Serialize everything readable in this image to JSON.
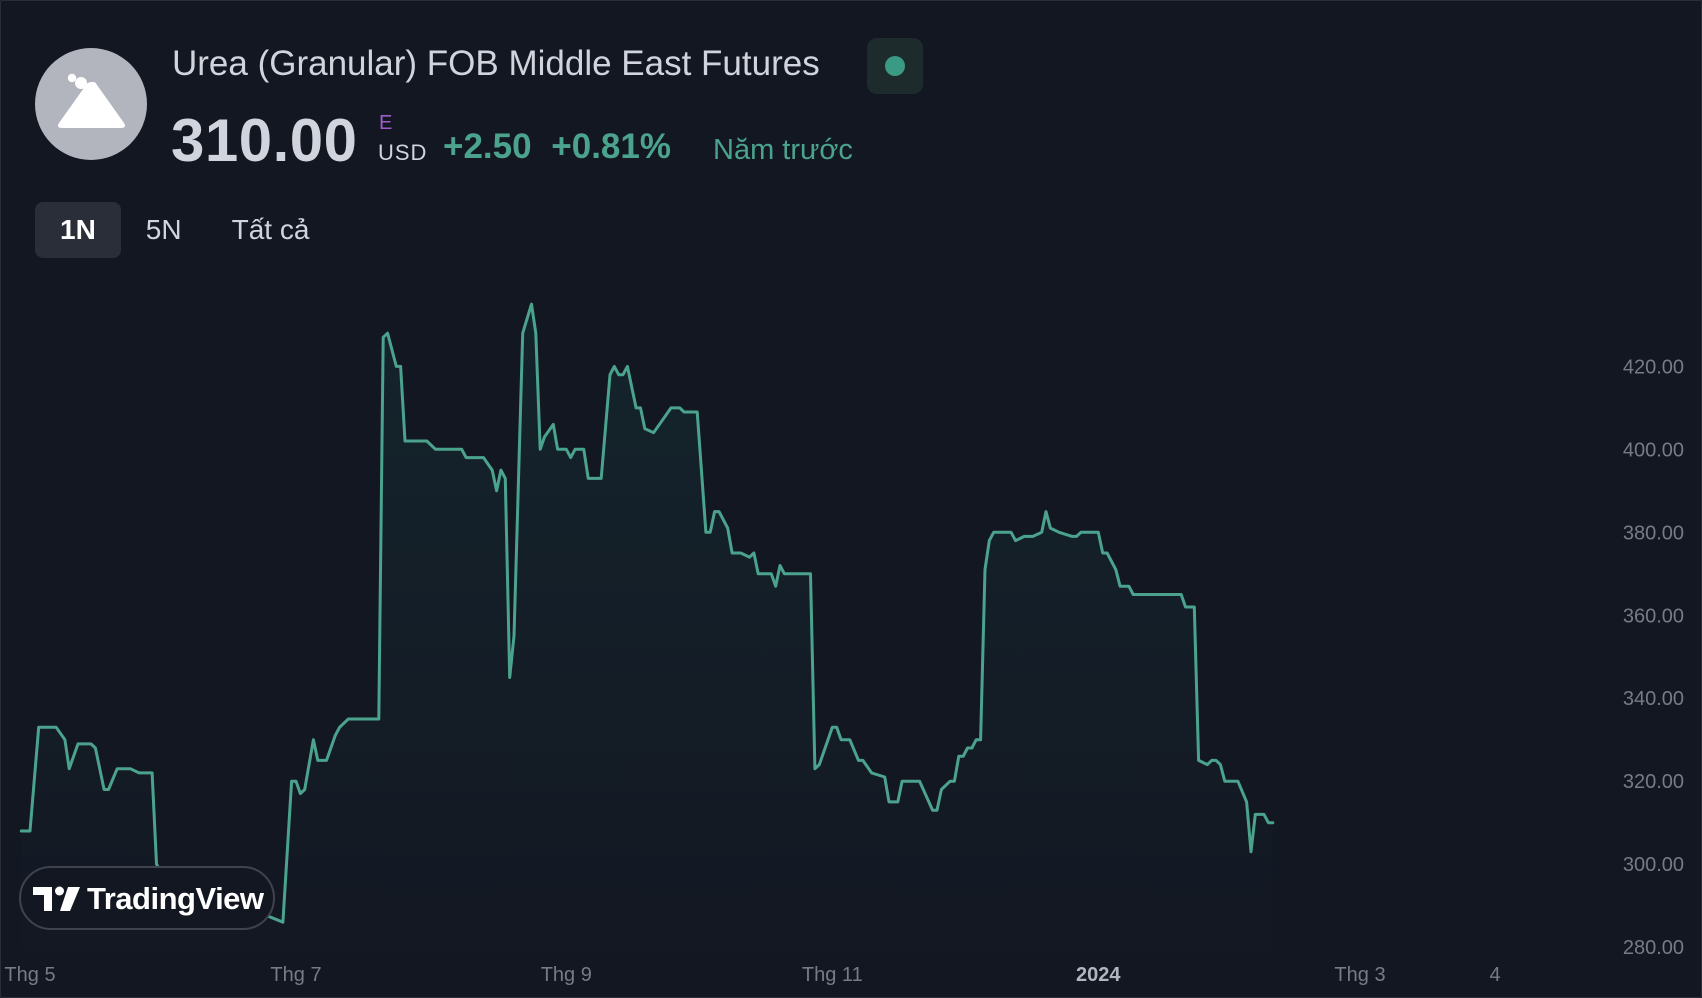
{
  "header": {
    "logo_icon": "mountain-icon",
    "title": "Urea (Granular) FOB Middle East Futures",
    "status_icon": "market-open-dot-icon",
    "status_color": "#3a9a84",
    "price": "310.00",
    "price_flag": "E",
    "currency": "USD",
    "change": "+2.50",
    "change_pct": "+0.81%",
    "period_label": "Năm trước",
    "accent_color": "#4ba38d"
  },
  "tabs": [
    {
      "label": "1N",
      "active": true
    },
    {
      "label": "5N",
      "active": false
    },
    {
      "label": "Tất cả",
      "active": false
    }
  ],
  "branding": {
    "label": "TradingView",
    "icon": "tradingview-logo-icon"
  },
  "chart_data": {
    "type": "area",
    "line_color": "#4ba38d",
    "ylim": [
      274,
      436
    ],
    "y_ticks": [
      "420.00",
      "400.00",
      "380.00",
      "360.00",
      "340.00",
      "320.00",
      "300.00",
      "280.00"
    ],
    "x_ticks": [
      {
        "label": "Thg 5",
        "at": "2023-05-01",
        "bold": false
      },
      {
        "label": "Thg 7",
        "at": "2023-07-01",
        "bold": false
      },
      {
        "label": "Thg 9",
        "at": "2023-09-01",
        "bold": false
      },
      {
        "label": "Thg 11",
        "at": "2023-11-01",
        "bold": false
      },
      {
        "label": "2024",
        "at": "2024-01-01",
        "bold": true
      },
      {
        "label": "Thg 3",
        "at": "2024-03-01",
        "bold": false
      },
      {
        "label": "4",
        "at": "2024-04-01",
        "bold": false
      }
    ],
    "x_range": [
      "2023-05-01",
      "2024-04-20"
    ],
    "series": [
      {
        "values": [
          [
            "2023-04-29",
            308
          ],
          [
            "2023-05-01",
            308
          ],
          [
            "2023-05-03",
            333
          ],
          [
            "2023-05-07",
            333
          ],
          [
            "2023-05-09",
            330
          ],
          [
            "2023-05-10",
            323
          ],
          [
            "2023-05-12",
            329
          ],
          [
            "2023-05-15",
            329
          ],
          [
            "2023-05-16",
            328
          ],
          [
            "2023-05-18",
            318
          ],
          [
            "2023-05-19",
            318
          ],
          [
            "2023-05-21",
            323
          ],
          [
            "2023-05-24",
            323
          ],
          [
            "2023-05-26",
            322
          ],
          [
            "2023-05-29",
            322
          ],
          [
            "2023-05-30",
            300
          ],
          [
            "2023-05-31",
            298
          ],
          [
            "2023-06-28",
            286
          ],
          [
            "2023-06-30",
            320
          ],
          [
            "2023-07-01",
            320
          ],
          [
            "2023-07-02",
            317
          ],
          [
            "2023-07-03",
            318
          ],
          [
            "2023-07-05",
            330
          ],
          [
            "2023-07-06",
            325
          ],
          [
            "2023-07-08",
            325
          ],
          [
            "2023-07-10",
            331
          ],
          [
            "2023-07-11",
            333
          ],
          [
            "2023-07-13",
            335
          ],
          [
            "2023-07-20",
            335
          ],
          [
            "2023-07-21",
            427
          ],
          [
            "2023-07-22",
            428
          ],
          [
            "2023-07-24",
            420
          ],
          [
            "2023-07-25",
            420
          ],
          [
            "2023-07-26",
            402
          ],
          [
            "2023-07-31",
            402
          ],
          [
            "2023-08-02",
            400
          ],
          [
            "2023-08-08",
            400
          ],
          [
            "2023-08-09",
            398
          ],
          [
            "2023-08-13",
            398
          ],
          [
            "2023-08-15",
            395
          ],
          [
            "2023-08-16",
            390
          ],
          [
            "2023-08-17",
            395
          ],
          [
            "2023-08-18",
            393
          ],
          [
            "2023-08-19",
            345
          ],
          [
            "2023-08-20",
            355
          ],
          [
            "2023-08-22",
            428
          ],
          [
            "2023-08-24",
            435
          ],
          [
            "2023-08-25",
            428
          ],
          [
            "2023-08-26",
            400
          ],
          [
            "2023-08-27",
            403
          ],
          [
            "2023-08-29",
            406
          ],
          [
            "2023-08-30",
            400
          ],
          [
            "2023-09-01",
            400
          ],
          [
            "2023-09-02",
            398
          ],
          [
            "2023-09-03",
            400
          ],
          [
            "2023-09-05",
            400
          ],
          [
            "2023-09-06",
            393
          ],
          [
            "2023-09-09",
            393
          ],
          [
            "2023-09-11",
            418
          ],
          [
            "2023-09-12",
            420
          ],
          [
            "2023-09-13",
            418
          ],
          [
            "2023-09-14",
            418
          ],
          [
            "2023-09-15",
            420
          ],
          [
            "2023-09-17",
            410
          ],
          [
            "2023-09-18",
            410
          ],
          [
            "2023-09-19",
            405
          ],
          [
            "2023-09-21",
            404
          ],
          [
            "2023-09-23",
            407
          ],
          [
            "2023-09-25",
            410
          ],
          [
            "2023-09-27",
            410
          ],
          [
            "2023-09-28",
            409
          ],
          [
            "2023-10-01",
            409
          ],
          [
            "2023-10-03",
            380
          ],
          [
            "2023-10-04",
            380
          ],
          [
            "2023-10-05",
            385
          ],
          [
            "2023-10-06",
            385
          ],
          [
            "2023-10-08",
            381
          ],
          [
            "2023-10-09",
            375
          ],
          [
            "2023-10-11",
            375
          ],
          [
            "2023-10-13",
            374
          ],
          [
            "2023-10-14",
            375
          ],
          [
            "2023-10-15",
            370
          ],
          [
            "2023-10-18",
            370
          ],
          [
            "2023-10-19",
            367
          ],
          [
            "2023-10-20",
            372
          ],
          [
            "2023-10-21",
            370
          ],
          [
            "2023-10-27",
            370
          ],
          [
            "2023-10-28",
            323
          ],
          [
            "2023-10-29",
            324
          ],
          [
            "2023-10-31",
            330
          ],
          [
            "2023-11-01",
            333
          ],
          [
            "2023-11-02",
            333
          ],
          [
            "2023-11-03",
            330
          ],
          [
            "2023-11-05",
            330
          ],
          [
            "2023-11-07",
            325
          ],
          [
            "2023-11-08",
            325
          ],
          [
            "2023-11-10",
            322
          ],
          [
            "2023-11-13",
            321
          ],
          [
            "2023-11-14",
            315
          ],
          [
            "2023-11-16",
            315
          ],
          [
            "2023-11-17",
            320
          ],
          [
            "2023-11-21",
            320
          ],
          [
            "2023-11-24",
            313
          ],
          [
            "2023-11-25",
            313
          ],
          [
            "2023-11-26",
            318
          ],
          [
            "2023-11-28",
            320
          ],
          [
            "2023-11-29",
            320
          ],
          [
            "2023-11-30",
            326
          ],
          [
            "2023-12-01",
            326
          ],
          [
            "2023-12-02",
            328
          ],
          [
            "2023-12-03",
            328
          ],
          [
            "2023-12-04",
            330
          ],
          [
            "2023-12-05",
            330
          ],
          [
            "2023-12-06",
            371
          ],
          [
            "2023-12-07",
            378
          ],
          [
            "2023-12-08",
            380
          ],
          [
            "2023-12-12",
            380
          ],
          [
            "2023-12-13",
            378
          ],
          [
            "2023-12-15",
            379
          ],
          [
            "2023-12-17",
            379
          ],
          [
            "2023-12-19",
            380
          ],
          [
            "2023-12-20",
            385
          ],
          [
            "2023-12-21",
            381
          ],
          [
            "2023-12-23",
            380
          ],
          [
            "2023-12-26",
            379
          ],
          [
            "2023-12-27",
            379
          ],
          [
            "2023-12-28",
            380
          ],
          [
            "2024-01-01",
            380
          ],
          [
            "2024-01-02",
            375
          ],
          [
            "2024-01-03",
            375
          ],
          [
            "2024-01-05",
            371
          ],
          [
            "2024-01-06",
            367
          ],
          [
            "2024-01-08",
            367
          ],
          [
            "2024-01-09",
            365
          ],
          [
            "2024-01-12",
            365
          ],
          [
            "2024-01-20",
            365
          ],
          [
            "2024-01-21",
            362
          ],
          [
            "2024-01-23",
            362
          ],
          [
            "2024-01-24",
            325
          ],
          [
            "2024-01-26",
            324
          ],
          [
            "2024-01-27",
            325
          ],
          [
            "2024-01-28",
            325
          ],
          [
            "2024-01-29",
            324
          ],
          [
            "2024-01-30",
            320
          ],
          [
            "2024-02-02",
            320
          ],
          [
            "2024-02-04",
            315
          ],
          [
            "2024-02-05",
            303
          ],
          [
            "2024-02-06",
            312
          ],
          [
            "2024-02-08",
            312
          ],
          [
            "2024-02-09",
            310
          ],
          [
            "2024-02-10",
            310
          ]
        ]
      }
    ]
  }
}
